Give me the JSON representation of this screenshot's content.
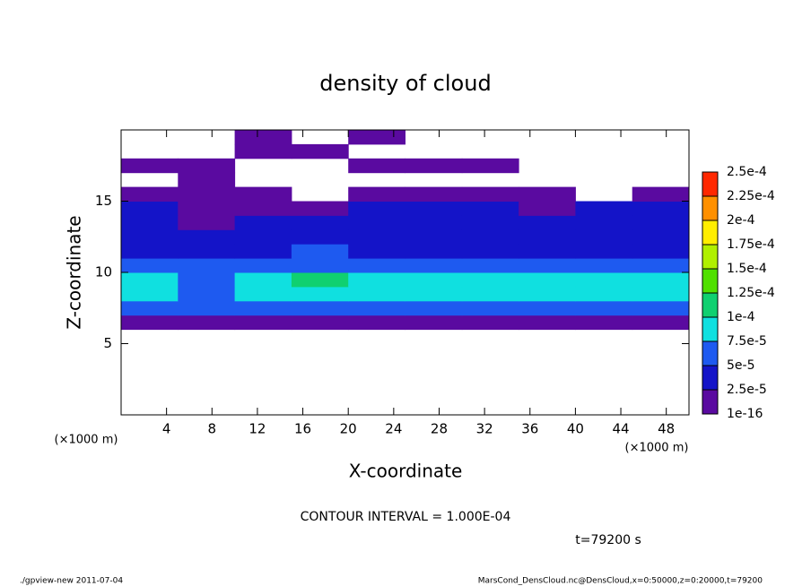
{
  "chart_data": {
    "type": "heatmap",
    "title": "density of cloud",
    "x_label": "X-coordinate",
    "y_label": "Z-coordinate",
    "x_unit": "(×1000 m)",
    "x_unit_right": "(×1000 m)",
    "xlim": [
      0,
      50
    ],
    "ylim": [
      0,
      20
    ],
    "xticks": [
      4,
      8,
      12,
      16,
      20,
      24,
      28,
      32,
      36,
      40,
      44,
      48
    ],
    "yticks": [
      5,
      10,
      15
    ],
    "x_edges": [
      0,
      5,
      10,
      15,
      20,
      25,
      30,
      35,
      40,
      45,
      50
    ],
    "z_edges": [
      6,
      7,
      8,
      9,
      10,
      11,
      12,
      13,
      14,
      15,
      16,
      17,
      18,
      19,
      20
    ],
    "values": [
      [
        2e-05,
        2e-05,
        2e-05,
        2e-05,
        2e-05,
        2e-05,
        2e-05,
        2e-05,
        2e-05,
        2e-05
      ],
      [
        5e-05,
        5e-05,
        6e-05,
        6e-05,
        6e-05,
        6e-05,
        6e-05,
        6e-05,
        6e-05,
        6e-05
      ],
      [
        8e-05,
        7e-05,
        8e-05,
        8e-05,
        8e-05,
        8e-05,
        8e-05,
        8e-05,
        8e-05,
        8e-05
      ],
      [
        8e-05,
        6e-05,
        8e-05,
        0.00011,
        8e-05,
        8e-05,
        9e-05,
        8e-05,
        8e-05,
        8e-05
      ],
      [
        6e-05,
        5e-05,
        6e-05,
        6e-05,
        6e-05,
        6e-05,
        6e-05,
        5e-05,
        5e-05,
        6e-05
      ],
      [
        4e-05,
        4e-05,
        4e-05,
        5e-05,
        4e-05,
        4e-05,
        4e-05,
        4e-05,
        4e-05,
        4e-05
      ],
      [
        3e-05,
        3e-05,
        3e-05,
        3e-05,
        3e-05,
        3e-05,
        3e-05,
        3e-05,
        3e-05,
        3e-05
      ],
      [
        3e-05,
        2e-05,
        3e-05,
        3e-05,
        3e-05,
        3e-05,
        3e-05,
        3e-05,
        3e-05,
        3e-05
      ],
      [
        3e-05,
        2e-05,
        2e-05,
        2e-05,
        3e-05,
        3e-05,
        3e-05,
        2e-05,
        3e-05,
        3e-05
      ],
      [
        1e-05,
        1e-05,
        1e-05,
        null,
        1e-05,
        1e-05,
        1e-05,
        1e-05,
        null,
        1e-05
      ],
      [
        null,
        1e-05,
        null,
        null,
        null,
        null,
        null,
        null,
        null,
        null
      ],
      [
        1e-05,
        1e-05,
        null,
        null,
        1e-05,
        1e-05,
        1e-05,
        null,
        null,
        null
      ],
      [
        null,
        null,
        1e-05,
        1e-05,
        null,
        null,
        null,
        null,
        null,
        null
      ],
      [
        null,
        null,
        1e-05,
        null,
        1e-05,
        null,
        null,
        null,
        null,
        null
      ]
    ],
    "levels": [
      {
        "value": 1e-16,
        "label": "1e-16"
      },
      {
        "value": 2.5e-05,
        "label": "2.5e-5"
      },
      {
        "value": 5e-05,
        "label": "5e-5"
      },
      {
        "value": 7.5e-05,
        "label": "7.5e-5"
      },
      {
        "value": 0.0001,
        "label": "1e-4"
      },
      {
        "value": 0.000125,
        "label": "1.25e-4"
      },
      {
        "value": 0.00015,
        "label": "1.5e-4"
      },
      {
        "value": 0.000175,
        "label": "1.75e-4"
      },
      {
        "value": 0.0002,
        "label": "2e-4"
      },
      {
        "value": 0.000225,
        "label": "2.25e-4"
      },
      {
        "value": 0.00025,
        "label": "2.5e-4"
      }
    ],
    "colors": [
      "#5a0aa0",
      "#1414c8",
      "#1e5af0",
      "#10e0e0",
      "#10d070",
      "#50e000",
      "#b0f000",
      "#ffee00",
      "#ff9000",
      "#ff2800"
    ],
    "contour_note": "CONTOUR INTERVAL = 1.000E-04",
    "time_note": "t=79200 s",
    "footer_left": "./gpview-new   2011-07-04",
    "footer_right": "MarsCond_DensCloud.nc@DensCloud,x=0:50000,z=0:20000,t=79200"
  }
}
